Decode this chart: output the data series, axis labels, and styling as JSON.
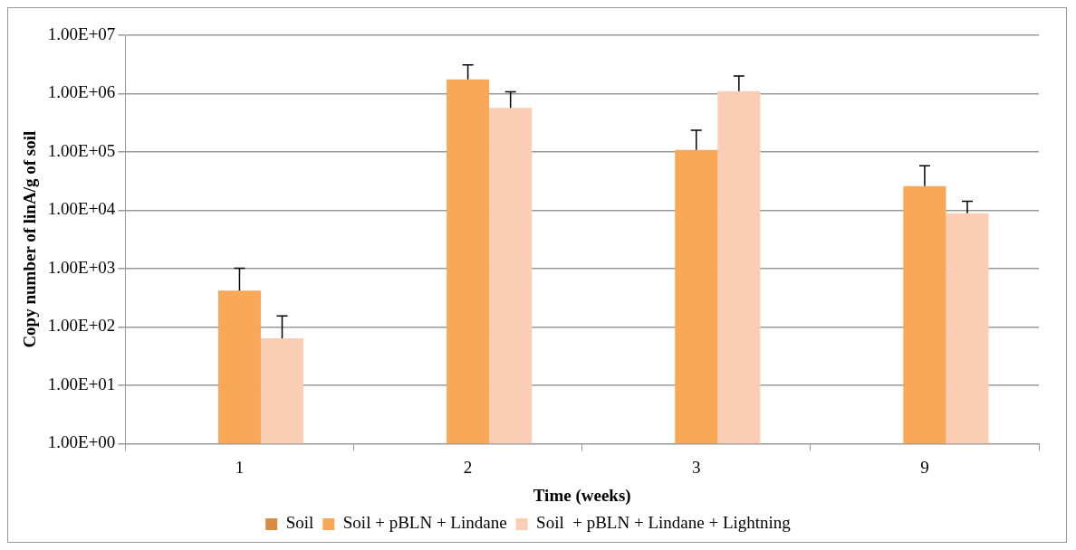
{
  "chart_data": {
    "type": "bar",
    "xlabel": "Time (weeks)",
    "ylabel": "Copy number of linA/g of soil",
    "categories": [
      "1",
      "2",
      "3",
      "9"
    ],
    "log": "y",
    "ylim": [
      1,
      10000000
    ],
    "yticks": [
      {
        "value": 1,
        "label": "1.00E+00"
      },
      {
        "value": 10,
        "label": "1.00E+01"
      },
      {
        "value": 100,
        "label": "1.00E+02"
      },
      {
        "value": 1000,
        "label": "1.00E+03"
      },
      {
        "value": 10000,
        "label": "1.00E+04"
      },
      {
        "value": 100000,
        "label": "1.00E+05"
      },
      {
        "value": 1000000,
        "label": "1.00E+06"
      },
      {
        "value": 10000000,
        "label": "1.00E+07"
      }
    ],
    "series": [
      {
        "name": "Soil",
        "color": "#d98b46",
        "values": [
          null,
          null,
          null,
          null
        ]
      },
      {
        "name": "Soil + pBLN + Lindane",
        "color": "#f9a857",
        "values": [
          420,
          1750000,
          108000,
          26000
        ],
        "errors": [
          [
            420,
            1020
          ],
          [
            1750000,
            3100000
          ],
          [
            108000,
            235000
          ],
          [
            26000,
            58000
          ]
        ]
      },
      {
        "name": "Soil  + pBLN + Lindane + Lightning",
        "color": "#fbcdb4",
        "values": [
          64,
          570000,
          1100000,
          8900
        ],
        "errors": [
          [
            64,
            155
          ],
          [
            570000,
            1070000
          ],
          [
            1100000,
            2000000
          ],
          [
            8900,
            14300
          ]
        ]
      }
    ],
    "grid": "y",
    "legend": "bottom"
  }
}
